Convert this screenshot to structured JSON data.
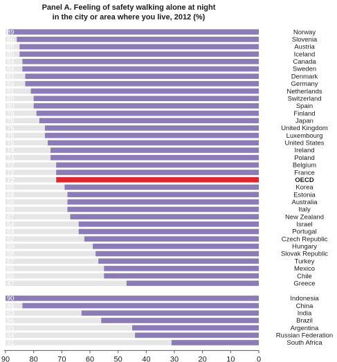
{
  "chart_data": {
    "type": "bar",
    "orientation": "horizontal",
    "title_lines": [
      "Panel A. Feeling of safety walking alone at night",
      "in the city or area where you live, 2012 (%)"
    ],
    "xlim": [
      0,
      90
    ],
    "x_reversed": true,
    "xticks": [
      "90",
      "80",
      "70",
      "60",
      "50",
      "40",
      "30",
      "20",
      "10",
      "0"
    ],
    "highlight": "OECD",
    "colors": {
      "bar": "#8b7bb8",
      "highlight_bar": "#e3242b",
      "track": "#e6e6e6",
      "axis": "#555555"
    },
    "groups": [
      {
        "categories": [
          "Norway",
          "Slovenia",
          "Austria",
          "Iceland",
          "Canada",
          "Sweden",
          "Denmark",
          "Germany",
          "Netherlands",
          "Switzerland",
          "Spain",
          "Finland",
          "Japan",
          "United Kingdom",
          "Luxembourg",
          "United States",
          "Ireland",
          "Poland",
          "Belgium",
          "France",
          "OECD",
          "Korea",
          "Estonia",
          "Australia",
          "Italy",
          "New Zealand",
          "Israel",
          "Portugal",
          "Czech Republic",
          "Hungary",
          "Slovak Republic",
          "Turkey",
          "Mexico",
          "Chile",
          "Greece"
        ],
        "labels": [
          "89",
          "86",
          "85",
          "85",
          "84",
          "84",
          "83",
          "83",
          "81",
          "80",
          "80",
          "79",
          "78",
          "76",
          "76",
          "75",
          "74",
          "74",
          "72",
          "72",
          "72",
          "69",
          "68",
          "68",
          "68",
          "67",
          "64",
          "64",
          "62",
          "59",
          "58",
          "57",
          "55",
          "55",
          "47"
        ],
        "values": [
          89,
          86,
          85,
          85,
          84,
          84,
          83,
          83,
          81,
          80,
          80,
          79,
          78,
          76,
          76,
          75,
          74,
          74,
          72,
          72,
          72,
          69,
          68,
          68,
          68,
          67,
          64,
          64,
          62,
          59,
          58,
          57,
          55,
          55,
          47
        ]
      },
      {
        "categories": [
          "Indonesia",
          "China",
          "India",
          "Brazil",
          "Argentina",
          "Russian Federation",
          "South Africa"
        ],
        "labels": [
          "90",
          "84",
          "63",
          "56",
          "45",
          "44",
          "31"
        ],
        "values": [
          90,
          84,
          63,
          56,
          45,
          44,
          31
        ]
      }
    ]
  }
}
